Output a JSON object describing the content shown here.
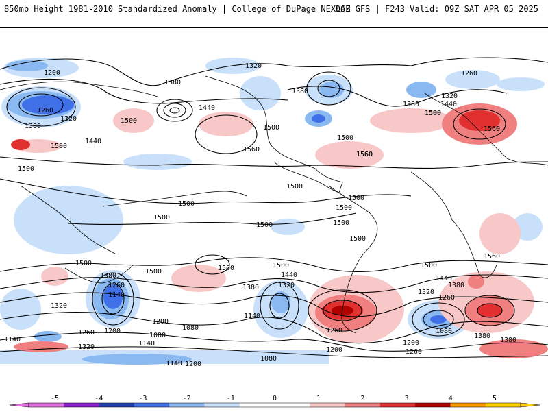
{
  "header": {
    "left": "850mb Height 1981-2010 Standardized Anomaly | College of DuPage NEXLAB",
    "right": "06Z GFS | F243 Valid: 09Z SAT APR 05 2025"
  },
  "colorbar": {
    "ticks": [
      "-5",
      "-4",
      "-3",
      "-2",
      "-1",
      "0",
      "1",
      "2",
      "3",
      "4",
      "5"
    ],
    "colors": [
      "#e070e0",
      "#8a1fd0",
      "#1f3fb0",
      "#3f70e8",
      "#8ab8f0",
      "#c8e0fa",
      "#ffffff",
      "#ffffff",
      "#f8c8c8",
      "#f08080",
      "#e03030",
      "#b00000",
      "#ff9a00",
      "#ffd000"
    ]
  },
  "map": {
    "contour_labels": [
      "1200",
      "1380",
      "1320",
      "1380",
      "1260",
      "1320",
      "1500",
      "1380",
      "1260",
      "1320",
      "1500",
      "1440",
      "1500",
      "1500",
      "1380",
      "1500",
      "1560",
      "1440",
      "1500",
      "1560",
      "1440",
      "1560",
      "1500",
      "1560",
      "1500",
      "1500",
      "1500",
      "1500",
      "1500",
      "1500",
      "1500",
      "1500",
      "1500",
      "1560",
      "1500",
      "1560",
      "1500",
      "1500",
      "1440",
      "1380",
      "1440",
      "1320",
      "1380",
      "1260",
      "1320",
      "1260",
      "1140",
      "1380",
      "1320",
      "1200",
      "1140",
      "1140",
      "1260",
      "1200",
      "1140",
      "1080",
      "1080",
      "1260",
      "1200",
      "1200",
      "1260",
      "1140",
      "1320",
      "1080",
      "1140",
      "1200",
      "1080",
      "1380",
      "1380"
    ]
  }
}
